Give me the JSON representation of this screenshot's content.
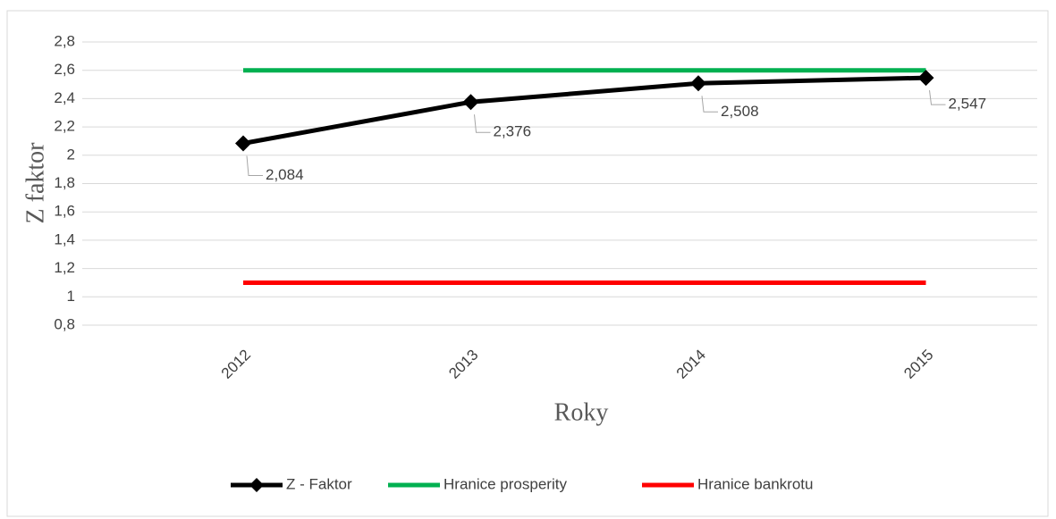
{
  "chart_data": {
    "type": "line",
    "x_label": "Roky",
    "y_label": "Z faktor",
    "categories": [
      "2012",
      "2013",
      "2014",
      "2015"
    ],
    "series": [
      {
        "name": "Z - Faktor",
        "color": "#000000",
        "values": [
          2.084,
          2.376,
          2.508,
          2.547
        ],
        "value_labels": [
          "2,084",
          "2,376",
          "2,508",
          "2,547"
        ],
        "marker": "diamond"
      },
      {
        "name": "Hranice prosperity",
        "color": "#00b050",
        "values": [
          2.6,
          2.6,
          2.6,
          2.6
        ]
      },
      {
        "name": "Hranice bankrotu",
        "color": "#ff0000",
        "values": [
          1.1,
          1.1,
          1.1,
          1.1
        ]
      }
    ],
    "ylim": [
      0.8,
      2.8
    ],
    "yticks": [
      {
        "value": 0.8,
        "label": "0,8"
      },
      1,
      {
        "value": 1.2,
        "label": "1,2"
      },
      {
        "value": 1.4,
        "label": "1,4"
      },
      {
        "value": 1.6,
        "label": "1,6"
      },
      {
        "value": 1.8,
        "label": "1,8"
      },
      2,
      {
        "value": 2.2,
        "label": "2,2"
      },
      {
        "value": 2.4,
        "label": "2,4"
      },
      {
        "value": 2.6,
        "label": "2,6"
      },
      {
        "value": 2.8,
        "label": "2,8"
      }
    ],
    "grid": true,
    "legend": "bottom"
  }
}
